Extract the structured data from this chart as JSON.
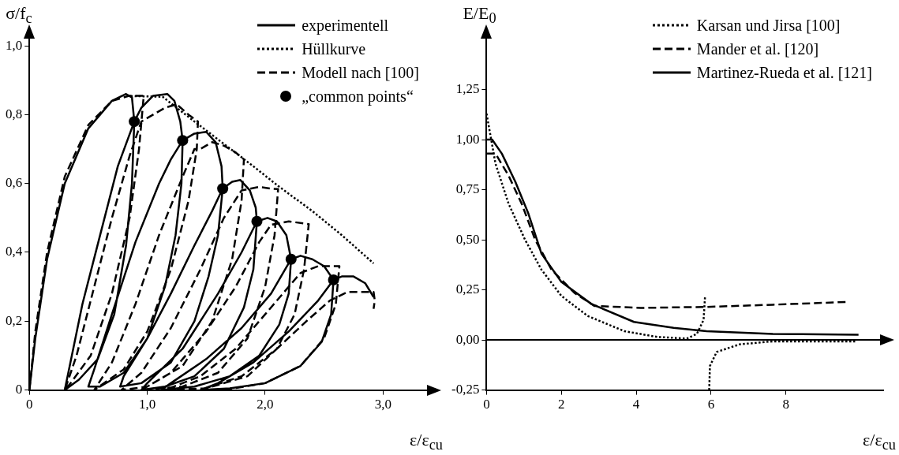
{
  "chart_data": [
    {
      "type": "line",
      "xlabel": "ε/ε$_{cu}$",
      "ylabel": "σ/f$_{c}$",
      "xlim": [
        0,
        3.4
      ],
      "ylim": [
        0,
        1.03
      ],
      "xticks": [
        0,
        {
          "value": 1,
          "label": "1,0"
        },
        {
          "value": 2,
          "label": "2,0"
        },
        {
          "value": 3,
          "label": "3,0"
        }
      ],
      "yticks": [
        0,
        {
          "value": 0.2,
          "label": "0,2"
        },
        {
          "value": 0.4,
          "label": "0,4"
        },
        {
          "value": 0.6,
          "label": "0,6"
        },
        {
          "value": 0.8,
          "label": "0,8"
        },
        {
          "value": 1,
          "label": "1,0"
        }
      ],
      "grid": false,
      "legend": "top right",
      "series": [
        {
          "name": "experimentell",
          "color": "#000000",
          "line_style": "solid",
          "marker": "none",
          "x": [
            0,
            0.05,
            0.15,
            0.3,
            0.5,
            0.7,
            0.82,
            0.87,
            0.89,
            0.87,
            0.82,
            0.72,
            0.58,
            0.42,
            0.3,
            0.33,
            0.45,
            0.6,
            0.75,
            0.89,
            0.95,
            1.05,
            1.17,
            1.23,
            1.28,
            1.3,
            1.29,
            1.24,
            1.15,
            1.0,
            0.8,
            0.6,
            0.5,
            0.55,
            0.7,
            0.9,
            1.1,
            1.2,
            1.3,
            1.4,
            1.5,
            1.58,
            1.63,
            1.64,
            1.6,
            1.52,
            1.4,
            1.2,
            0.95,
            0.77,
            0.8,
            1.0,
            1.2,
            1.4,
            1.55,
            1.64,
            1.72,
            1.79,
            1.87,
            1.92,
            1.93,
            1.9,
            1.82,
            1.65,
            1.4,
            1.15,
            0.95,
            1.0,
            1.3,
            1.6,
            1.8,
            1.93,
            2.02,
            2.1,
            2.18,
            2.22,
            2.2,
            2.12,
            1.95,
            1.7,
            1.4,
            1.12,
            1.2,
            1.5,
            1.8,
            2.05,
            2.22,
            2.3,
            2.4,
            2.5,
            2.58,
            2.56,
            2.48,
            2.3,
            2.0,
            1.7,
            1.45,
            1.6,
            1.9,
            2.2,
            2.45,
            2.58,
            2.65,
            2.75,
            2.85,
            2.92
          ],
          "values": [
            0,
            0.15,
            0.38,
            0.6,
            0.76,
            0.84,
            0.86,
            0.85,
            0.78,
            0.6,
            0.42,
            0.22,
            0.09,
            0.03,
            0,
            0.05,
            0.25,
            0.45,
            0.65,
            0.78,
            0.82,
            0.855,
            0.86,
            0.84,
            0.78,
            0.725,
            0.6,
            0.45,
            0.3,
            0.15,
            0.05,
            0.01,
            0.01,
            0.06,
            0.22,
            0.43,
            0.6,
            0.67,
            0.725,
            0.745,
            0.75,
            0.72,
            0.65,
            0.585,
            0.45,
            0.33,
            0.2,
            0.08,
            0.02,
            0.01,
            0.04,
            0.15,
            0.28,
            0.42,
            0.52,
            0.585,
            0.605,
            0.61,
            0.58,
            0.53,
            0.49,
            0.35,
            0.24,
            0.12,
            0.04,
            0.01,
            0,
            0.02,
            0.12,
            0.28,
            0.4,
            0.49,
            0.5,
            0.49,
            0.45,
            0.38,
            0.28,
            0.19,
            0.1,
            0.04,
            0.01,
            0,
            0.02,
            0.09,
            0.18,
            0.28,
            0.38,
            0.39,
            0.38,
            0.36,
            0.32,
            0.22,
            0.14,
            0.07,
            0.02,
            0.005,
            0,
            0.02,
            0.08,
            0.17,
            0.26,
            0.32,
            0.33,
            0.33,
            0.31,
            0.27
          ]
        },
        {
          "name": "Hüllkurve",
          "color": "#000000",
          "line_style": "dotted",
          "marker": "none",
          "x": [
            0.86,
            1.13,
            1.4,
            1.67,
            1.9,
            2.11,
            2.4,
            2.65,
            2.92
          ],
          "values": [
            0.854,
            0.852,
            0.78,
            0.71,
            0.65,
            0.593,
            0.52,
            0.45,
            0.368
          ]
        },
        {
          "name": "Modell nach [100]",
          "color": "#000000",
          "line_style": "dashed",
          "marker": "none",
          "x": [
            0,
            0.05,
            0.15,
            0.3,
            0.5,
            0.7,
            0.85,
            0.97,
            0.93,
            0.85,
            0.7,
            0.52,
            0.35,
            0.3,
            0.4,
            0.55,
            0.7,
            0.85,
            0.95,
            1.05,
            1.15,
            1.25,
            1.35,
            1.43,
            1.42,
            1.35,
            1.2,
            1.0,
            0.8,
            0.55,
            0.7,
            0.9,
            1.1,
            1.3,
            1.4,
            1.45,
            1.55,
            1.65,
            1.75,
            1.82,
            1.8,
            1.72,
            1.55,
            1.3,
            1.0,
            0.78,
            0.95,
            1.2,
            1.45,
            1.65,
            1.8,
            1.95,
            2.05,
            2.11,
            2.08,
            2.0,
            1.85,
            1.6,
            1.3,
            0.95,
            1.2,
            1.5,
            1.75,
            1.95,
            2.05,
            2.2,
            2.37,
            2.33,
            2.25,
            2.1,
            1.85,
            1.5,
            1.15,
            1.45,
            1.75,
            2.0,
            2.2,
            2.3,
            2.45,
            2.63,
            2.6,
            2.5,
            2.3,
            2.0,
            1.65,
            1.45,
            1.8,
            2.1,
            2.35,
            2.55,
            2.7,
            2.92,
            2.93,
            2.92
          ],
          "values": [
            0,
            0.17,
            0.4,
            0.62,
            0.77,
            0.84,
            0.855,
            0.855,
            0.7,
            0.5,
            0.28,
            0.1,
            0.02,
            0,
            0.1,
            0.3,
            0.5,
            0.68,
            0.78,
            0.8,
            0.82,
            0.83,
            0.8,
            0.78,
            0.7,
            0.55,
            0.35,
            0.17,
            0.06,
            0,
            0.08,
            0.25,
            0.45,
            0.62,
            0.7,
            0.7,
            0.72,
            0.71,
            0.69,
            0.67,
            0.55,
            0.38,
            0.2,
            0.07,
            0.01,
            0,
            0.05,
            0.18,
            0.35,
            0.5,
            0.58,
            0.59,
            0.585,
            0.584,
            0.45,
            0.3,
            0.15,
            0.05,
            0.01,
            0,
            0.05,
            0.17,
            0.3,
            0.43,
            0.48,
            0.49,
            0.482,
            0.35,
            0.22,
            0.12,
            0.04,
            0.005,
            0,
            0.04,
            0.12,
            0.22,
            0.3,
            0.34,
            0.36,
            0.36,
            0.25,
            0.15,
            0.07,
            0.02,
            0,
            0,
            0.04,
            0.12,
            0.2,
            0.26,
            0.285,
            0.285,
            0.26,
            0.236
          ]
        },
        {
          "name": "„common points“",
          "type": "scatter",
          "color": "#000000",
          "marker": "circle",
          "x": [
            0.89,
            1.3,
            1.64,
            1.93,
            2.22,
            2.58
          ],
          "values": [
            0.78,
            0.725,
            0.585,
            0.49,
            0.38,
            0.32
          ]
        }
      ]
    },
    {
      "type": "line",
      "xlabel": "ε/ε$_{cu}$",
      "ylabel": "E/E$_{0}$",
      "xlim": [
        0,
        10.6
      ],
      "ylim": [
        -0.25,
        1.52
      ],
      "xticks": [
        0,
        2,
        4,
        6,
        8
      ],
      "yticks": [
        {
          "value": -0.25,
          "label": "-0,25"
        },
        {
          "value": 0,
          "label": "0,00"
        },
        {
          "value": 0.25,
          "label": "0,25"
        },
        {
          "value": 0.5,
          "label": "0,50"
        },
        {
          "value": 0.75,
          "label": "0,75"
        },
        {
          "value": 1,
          "label": "1,00"
        },
        {
          "value": 1.25,
          "label": "1,25"
        }
      ],
      "grid": false,
      "legend": "top right",
      "ref_lines": [
        {
          "axis": "y",
          "value": 0
        }
      ],
      "series": [
        {
          "name": "Karsan und Jirsa [100]",
          "color": "#000000",
          "line_style": "dotted",
          "marker": "none",
          "x": [
            0,
            0.24,
            0.59,
            1.03,
            1.47,
            2.0,
            2.7,
            3.68,
            4.56,
            5.35,
            5.62,
            5.8,
            5.84,
            5.9,
            5.95,
            5.97,
            6.15,
            6.76,
            7.65,
            9.85
          ],
          "values": [
            1.13,
            0.88,
            0.68,
            0.5,
            0.35,
            0.22,
            0.12,
            0.044,
            0.015,
            0.007,
            0.03,
            0.1,
            0.22,
            null,
            -0.25,
            -0.13,
            -0.06,
            -0.022,
            -0.007,
            -0.007
          ]
        },
        {
          "name": "Mander et al. [120]",
          "color": "#000000",
          "line_style": "dashed",
          "marker": "none",
          "x": [
            0,
            0.24,
            0.59,
            0.94,
            1.3,
            1.74,
            2.35,
            2.88,
            4.12,
            5.88,
            7.65,
            9.67
          ],
          "values": [
            0.93,
            0.93,
            0.82,
            0.68,
            0.5,
            0.35,
            0.235,
            0.17,
            0.16,
            0.165,
            0.176,
            0.19
          ]
        },
        {
          "name": "Martinez-Rueda et al. [121]",
          "color": "#000000",
          "line_style": "solid",
          "marker": "none",
          "x": [
            0,
            0.15,
            0.41,
            0.77,
            1.12,
            1.47,
            2.0,
            2.8,
            3.94,
            5.0,
            5.88,
            7.65,
            9.94
          ],
          "values": [
            1.0,
            1.0,
            0.93,
            0.79,
            0.63,
            0.43,
            0.29,
            0.18,
            0.09,
            0.06,
            0.044,
            0.03,
            0.026
          ]
        }
      ]
    }
  ]
}
